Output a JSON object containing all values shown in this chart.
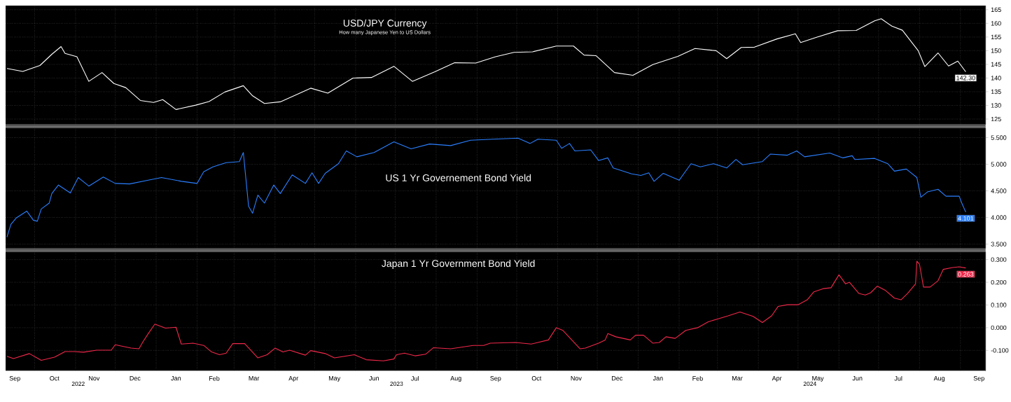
{
  "chart_data": [
    {
      "type": "line",
      "title": "USD/JPY Currency",
      "subtitle": "How many Japanese Yen to US Dollars",
      "color": "#ffffff",
      "x": [
        "2022-09-10",
        "2022-09-22",
        "2022-10-05",
        "2022-10-14",
        "2022-10-21",
        "2022-10-24",
        "2022-11-02",
        "2022-11-11",
        "2022-11-21",
        "2022-11-30",
        "2022-12-09",
        "2022-12-20",
        "2022-12-30",
        "2023-01-06",
        "2023-01-16",
        "2023-01-31",
        "2023-02-10",
        "2023-02-22",
        "2023-03-08",
        "2023-03-15",
        "2023-03-24",
        "2023-04-05",
        "2023-04-18",
        "2023-04-28",
        "2023-05-11",
        "2023-05-30",
        "2023-06-13",
        "2023-06-30",
        "2023-07-14",
        "2023-07-31",
        "2023-08-15",
        "2023-08-31",
        "2023-09-15",
        "2023-09-29",
        "2023-10-13",
        "2023-10-31",
        "2023-11-13",
        "2023-11-21",
        "2023-11-30",
        "2023-12-14",
        "2023-12-28",
        "2024-01-12",
        "2024-01-31",
        "2024-02-13",
        "2024-02-29",
        "2024-03-08",
        "2024-03-19",
        "2024-03-29",
        "2024-04-15",
        "2024-04-29",
        "2024-05-03",
        "2024-05-15",
        "2024-05-31",
        "2024-06-14",
        "2024-06-28",
        "2024-07-03",
        "2024-07-11",
        "2024-07-19",
        "2024-07-31",
        "2024-08-05",
        "2024-08-15",
        "2024-08-23",
        "2024-08-30",
        "2024-09-05"
      ],
      "values": [
        143.5,
        142.4,
        144.6,
        148.7,
        151.5,
        149.0,
        147.8,
        138.8,
        142.0,
        138.0,
        136.5,
        131.8,
        131.1,
        132.1,
        128.5,
        130.1,
        131.4,
        134.9,
        137.2,
        133.5,
        130.7,
        131.3,
        134.1,
        136.3,
        134.5,
        140.0,
        140.2,
        144.3,
        138.8,
        142.3,
        145.6,
        145.5,
        147.8,
        149.4,
        149.6,
        151.7,
        151.7,
        148.4,
        148.2,
        142.0,
        141.0,
        144.9,
        147.9,
        150.8,
        150.0,
        147.1,
        151.2,
        151.3,
        154.3,
        156.2,
        153.0,
        154.9,
        157.3,
        157.4,
        160.9,
        161.7,
        159.0,
        157.5,
        150.0,
        144.2,
        149.2,
        144.4,
        146.2,
        142.3
      ],
      "xlim": [
        "2022-09-09",
        "2024-09-20"
      ],
      "ylim": [
        123,
        166.5
      ],
      "xticks": [
        {
          "value": "2022-10-01",
          "label": null
        },
        {
          "value": "2022-11-01",
          "label": null
        },
        {
          "value": "2022-12-01",
          "label": null
        },
        {
          "value": "2023-01-01",
          "label": null
        },
        {
          "value": "2023-02-01",
          "label": null
        },
        {
          "value": "2023-03-01",
          "label": null
        },
        {
          "value": "2023-04-01",
          "label": null
        },
        {
          "value": "2023-05-01",
          "label": null
        },
        {
          "value": "2023-06-01",
          "label": null
        },
        {
          "value": "2023-07-01",
          "label": null
        },
        {
          "value": "2023-08-01",
          "label": null
        },
        {
          "value": "2023-09-01",
          "label": null
        },
        {
          "value": "2023-10-01",
          "label": null
        },
        {
          "value": "2023-11-01",
          "label": null
        },
        {
          "value": "2023-12-01",
          "label": null
        },
        {
          "value": "2024-01-01",
          "label": null
        },
        {
          "value": "2024-02-01",
          "label": null
        },
        {
          "value": "2024-03-01",
          "label": null
        },
        {
          "value": "2024-04-01",
          "label": null
        },
        {
          "value": "2024-05-01",
          "label": null
        },
        {
          "value": "2024-06-01",
          "label": null
        },
        {
          "value": "2024-07-01",
          "label": null
        },
        {
          "value": "2024-08-01",
          "label": null
        },
        {
          "value": "2024-09-01",
          "label": null
        }
      ],
      "yticks": [
        125,
        130,
        135,
        140,
        145,
        150,
        155,
        160,
        165
      ],
      "grid": true,
      "tick_labels": "y",
      "annotations": [
        {
          "text": "142.30",
          "x": "2024-09-05",
          "y": 142.3
        }
      ]
    },
    {
      "type": "line",
      "title": "US 1 Yr Governement Bond Yield",
      "color": "#2a7fff",
      "x": [
        "2022-09-10",
        "2022-09-13",
        "2022-09-17",
        "2022-09-25",
        "2022-09-30",
        "2022-10-03",
        "2022-10-06",
        "2022-10-12",
        "2022-10-14",
        "2022-10-19",
        "2022-10-28",
        "2022-11-03",
        "2022-11-11",
        "2022-11-22",
        "2022-12-01",
        "2022-12-12",
        "2022-12-26",
        "2023-01-05",
        "2023-01-20",
        "2023-02-01",
        "2023-02-06",
        "2023-02-13",
        "2023-02-23",
        "2023-03-05",
        "2023-03-08",
        "2023-03-12",
        "2023-03-15",
        "2023-03-19",
        "2023-03-24",
        "2023-03-31",
        "2023-04-05",
        "2023-04-14",
        "2023-04-24",
        "2023-04-29",
        "2023-05-04",
        "2023-05-09",
        "2023-05-19",
        "2023-05-25",
        "2023-06-02",
        "2023-06-15",
        "2023-06-30",
        "2023-07-13",
        "2023-07-27",
        "2023-08-12",
        "2023-08-27",
        "2023-09-13",
        "2023-10-02",
        "2023-10-11",
        "2023-10-17",
        "2023-10-31",
        "2023-11-04",
        "2023-11-10",
        "2023-11-14",
        "2023-11-26",
        "2023-12-02",
        "2023-12-09",
        "2023-12-13",
        "2023-12-27",
        "2024-01-03",
        "2024-01-09",
        "2024-01-13",
        "2024-01-20",
        "2024-02-01",
        "2024-02-10",
        "2024-02-17",
        "2024-02-27",
        "2024-03-08",
        "2024-03-15",
        "2024-03-20",
        "2024-04-04",
        "2024-04-10",
        "2024-04-23",
        "2024-04-30",
        "2024-05-06",
        "2024-05-25",
        "2024-06-04",
        "2024-06-11",
        "2024-06-13",
        "2024-06-28",
        "2024-07-08",
        "2024-07-13",
        "2024-07-22",
        "2024-07-30",
        "2024-08-02",
        "2024-08-07",
        "2024-08-15",
        "2024-08-21",
        "2024-08-31",
        "2024-09-02",
        "2024-09-05"
      ],
      "values": [
        3.63,
        3.87,
        3.99,
        4.12,
        3.95,
        3.93,
        4.16,
        4.27,
        4.45,
        4.61,
        4.46,
        4.75,
        4.59,
        4.76,
        4.64,
        4.63,
        4.7,
        4.75,
        4.68,
        4.64,
        4.86,
        4.95,
        5.03,
        5.05,
        5.22,
        4.21,
        4.08,
        4.42,
        4.27,
        4.61,
        4.45,
        4.8,
        4.64,
        4.84,
        4.64,
        4.83,
        5.01,
        5.25,
        5.14,
        5.22,
        5.42,
        5.29,
        5.38,
        5.35,
        5.45,
        5.47,
        5.49,
        5.39,
        5.47,
        5.45,
        5.3,
        5.39,
        5.25,
        5.27,
        5.07,
        5.12,
        4.93,
        4.82,
        4.79,
        4.84,
        4.68,
        4.83,
        4.7,
        5.01,
        4.95,
        5.01,
        4.93,
        5.09,
        4.99,
        5.05,
        5.19,
        5.17,
        5.25,
        5.14,
        5.21,
        5.12,
        5.16,
        5.09,
        5.11,
        5.01,
        4.87,
        4.91,
        4.75,
        4.38,
        4.48,
        4.53,
        4.4,
        4.4,
        4.27,
        4.101
      ],
      "xlim": [
        "2022-09-09",
        "2024-09-20"
      ],
      "ylim": [
        3.42,
        5.68
      ],
      "xticks": [
        {
          "value": "2022-10-01",
          "label": null
        },
        {
          "value": "2022-11-01",
          "label": null
        },
        {
          "value": "2022-12-01",
          "label": null
        },
        {
          "value": "2023-01-01",
          "label": null
        },
        {
          "value": "2023-02-01",
          "label": null
        },
        {
          "value": "2023-03-01",
          "label": null
        },
        {
          "value": "2023-04-01",
          "label": null
        },
        {
          "value": "2023-05-01",
          "label": null
        },
        {
          "value": "2023-06-01",
          "label": null
        },
        {
          "value": "2023-07-01",
          "label": null
        },
        {
          "value": "2023-08-01",
          "label": null
        },
        {
          "value": "2023-09-01",
          "label": null
        },
        {
          "value": "2023-10-01",
          "label": null
        },
        {
          "value": "2023-11-01",
          "label": null
        },
        {
          "value": "2023-12-01",
          "label": null
        },
        {
          "value": "2024-01-01",
          "label": null
        },
        {
          "value": "2024-02-01",
          "label": null
        },
        {
          "value": "2024-03-01",
          "label": null
        },
        {
          "value": "2024-04-01",
          "label": null
        },
        {
          "value": "2024-05-01",
          "label": null
        },
        {
          "value": "2024-06-01",
          "label": null
        },
        {
          "value": "2024-07-01",
          "label": null
        },
        {
          "value": "2024-08-01",
          "label": null
        },
        {
          "value": "2024-09-01",
          "label": null
        }
      ],
      "yticks": [
        {
          "value": 3.5,
          "label": "3.500"
        },
        {
          "value": 4.0,
          "label": "4.000"
        },
        {
          "value": 4.5,
          "label": "4.500"
        },
        {
          "value": 5.0,
          "label": "5.000"
        },
        {
          "value": 5.5,
          "label": "5.500"
        }
      ],
      "grid": true,
      "tick_labels": "y",
      "annotations": [
        {
          "text": "4.101",
          "x": "2024-09-05",
          "y": 4.101
        }
      ]
    },
    {
      "type": "line",
      "title": "Japan 1 Yr Government Bond Yield",
      "color": "#f0284a",
      "x": [
        "2022-09-10",
        "2022-09-15",
        "2022-09-27",
        "2022-10-06",
        "2022-10-16",
        "2022-10-24",
        "2022-10-31",
        "2022-11-07",
        "2022-11-17",
        "2022-11-28",
        "2022-12-01",
        "2022-12-13",
        "2022-12-19",
        "2022-12-22",
        "2022-12-26",
        "2022-12-31",
        "2023-01-08",
        "2023-01-16",
        "2023-01-20",
        "2023-01-29",
        "2023-02-06",
        "2023-02-12",
        "2023-02-18",
        "2023-02-23",
        "2023-02-28",
        "2023-03-09",
        "2023-03-19",
        "2023-03-26",
        "2023-04-01",
        "2023-04-07",
        "2023-04-12",
        "2023-04-24",
        "2023-04-28",
        "2023-05-09",
        "2023-05-16",
        "2023-05-31",
        "2023-06-09",
        "2023-06-22",
        "2023-06-30",
        "2023-07-02",
        "2023-07-08",
        "2023-07-16",
        "2023-07-24",
        "2023-07-30",
        "2023-08-12",
        "2023-08-29",
        "2023-09-06",
        "2023-09-11",
        "2023-09-30",
        "2023-10-12",
        "2023-10-25",
        "2023-10-31",
        "2023-11-05",
        "2023-11-18",
        "2023-11-22",
        "2023-12-02",
        "2023-12-07",
        "2023-12-09",
        "2023-12-15",
        "2023-12-26",
        "2023-12-30",
        "2024-01-05",
        "2024-01-12",
        "2024-01-17",
        "2024-01-22",
        "2024-01-29",
        "2024-02-06",
        "2024-02-15",
        "2024-02-23",
        "2024-03-02",
        "2024-03-09",
        "2024-03-18",
        "2024-03-28",
        "2024-04-04",
        "2024-04-11",
        "2024-04-16",
        "2024-04-23",
        "2024-05-01",
        "2024-05-08",
        "2024-05-13",
        "2024-05-20",
        "2024-05-26",
        "2024-06-01",
        "2024-06-06",
        "2024-06-09",
        "2024-06-16",
        "2024-06-21",
        "2024-06-25",
        "2024-06-30",
        "2024-07-06",
        "2024-07-13",
        "2024-07-18",
        "2024-07-23",
        "2024-07-29",
        "2024-07-30",
        "2024-08-01",
        "2024-08-04",
        "2024-08-09",
        "2024-08-15",
        "2024-08-19",
        "2024-08-26",
        "2024-08-31",
        "2024-09-05"
      ],
      "values": [
        -0.126,
        -0.136,
        -0.114,
        -0.144,
        -0.13,
        -0.105,
        -0.105,
        -0.108,
        -0.099,
        -0.099,
        -0.075,
        -0.09,
        -0.093,
        -0.062,
        -0.026,
        0.016,
        -0.002,
        0.002,
        -0.072,
        -0.068,
        -0.078,
        -0.107,
        -0.119,
        -0.112,
        -0.07,
        -0.07,
        -0.133,
        -0.119,
        -0.09,
        -0.107,
        -0.099,
        -0.121,
        -0.101,
        -0.114,
        -0.133,
        -0.119,
        -0.141,
        -0.146,
        -0.138,
        -0.119,
        -0.112,
        -0.124,
        -0.117,
        -0.088,
        -0.093,
        -0.078,
        -0.078,
        -0.068,
        -0.065,
        -0.072,
        -0.054,
        0.0,
        -0.012,
        -0.093,
        -0.09,
        -0.068,
        -0.054,
        -0.026,
        -0.04,
        -0.054,
        -0.033,
        -0.033,
        -0.068,
        -0.065,
        -0.04,
        -0.047,
        -0.012,
        0.0,
        0.026,
        0.04,
        0.052,
        0.069,
        0.05,
        0.023,
        0.052,
        0.094,
        0.101,
        0.101,
        0.123,
        0.158,
        0.172,
        0.176,
        0.233,
        0.193,
        0.2,
        0.151,
        0.144,
        0.154,
        0.183,
        0.165,
        0.13,
        0.123,
        0.151,
        0.193,
        0.293,
        0.279,
        0.179,
        0.179,
        0.207,
        0.257,
        0.265,
        0.268,
        0.263
      ],
      "xlim": [
        "2022-09-09",
        "2024-09-20"
      ],
      "ylim": [
        -0.19,
        0.334
      ],
      "xticks": [
        {
          "value": "2022-10-01",
          "label": null
        },
        {
          "value": "2022-11-01",
          "label": null
        },
        {
          "value": "2022-12-01",
          "label": null
        },
        {
          "value": "2023-01-01",
          "label": null
        },
        {
          "value": "2023-02-01",
          "label": null
        },
        {
          "value": "2023-03-01",
          "label": null
        },
        {
          "value": "2023-04-01",
          "label": null
        },
        {
          "value": "2023-05-01",
          "label": null
        },
        {
          "value": "2023-06-01",
          "label": null
        },
        {
          "value": "2023-07-01",
          "label": null
        },
        {
          "value": "2023-08-01",
          "label": null
        },
        {
          "value": "2023-09-01",
          "label": null
        },
        {
          "value": "2023-10-01",
          "label": null
        },
        {
          "value": "2023-11-01",
          "label": null
        },
        {
          "value": "2023-12-01",
          "label": null
        },
        {
          "value": "2024-01-01",
          "label": null
        },
        {
          "value": "2024-02-01",
          "label": null
        },
        {
          "value": "2024-03-01",
          "label": null
        },
        {
          "value": "2024-04-01",
          "label": null
        },
        {
          "value": "2024-05-01",
          "label": null
        },
        {
          "value": "2024-06-01",
          "label": null
        },
        {
          "value": "2024-07-01",
          "label": null
        },
        {
          "value": "2024-08-01",
          "label": null
        },
        {
          "value": "2024-09-01",
          "label": null
        },
        {
          "value": "2022-09-16",
          "label": "Sep"
        },
        {
          "value": "2022-10-16",
          "label": "Oct"
        },
        {
          "value": "2022-11-15",
          "label": "Nov"
        },
        {
          "value": "2022-12-16",
          "label": "Dec"
        },
        {
          "value": "2023-01-16",
          "label": "Jan"
        },
        {
          "value": "2023-02-14",
          "label": "Feb"
        },
        {
          "value": "2023-03-16",
          "label": "Mar"
        },
        {
          "value": "2023-04-15",
          "label": "Apr"
        },
        {
          "value": "2023-05-16",
          "label": "May"
        },
        {
          "value": "2023-06-15",
          "label": "Jun"
        },
        {
          "value": "2023-07-16",
          "label": "Jul"
        },
        {
          "value": "2023-08-16",
          "label": "Aug"
        },
        {
          "value": "2023-09-15",
          "label": "Sep"
        },
        {
          "value": "2023-10-16",
          "label": "Oct"
        },
        {
          "value": "2023-11-15",
          "label": "Nov"
        },
        {
          "value": "2023-12-16",
          "label": "Dec"
        },
        {
          "value": "2024-01-16",
          "label": "Jan"
        },
        {
          "value": "2024-02-15",
          "label": "Feb"
        },
        {
          "value": "2024-03-16",
          "label": "Mar"
        },
        {
          "value": "2024-04-15",
          "label": "Apr"
        },
        {
          "value": "2024-05-16",
          "label": "May"
        },
        {
          "value": "2024-06-15",
          "label": "Jun"
        },
        {
          "value": "2024-07-16",
          "label": "Jul"
        },
        {
          "value": "2024-08-16",
          "label": "Aug"
        },
        {
          "value": "2024-09-15",
          "label": "Sep"
        }
      ],
      "x2lim": [
        "2022-09-09",
        "2024-09-20"
      ],
      "x2ticks": [
        {
          "value": "2022-11-03",
          "label": "2022"
        },
        {
          "value": "2023-01-01",
          "label": null
        },
        {
          "value": "2023-07-02",
          "label": "2023"
        },
        {
          "value": "2024-01-01",
          "label": null
        },
        {
          "value": "2024-05-10",
          "label": "2024"
        }
      ],
      "yticks": [
        {
          "value": -0.1,
          "label": "-0.100"
        },
        {
          "value": 0.0,
          "label": "0.000"
        },
        {
          "value": 0.1,
          "label": "0.100"
        },
        {
          "value": 0.2,
          "label": "0.200"
        },
        {
          "value": 0.3,
          "label": "0.300"
        }
      ],
      "grid": true,
      "annotations": [
        {
          "text": "0.263",
          "x": "2024-09-05",
          "y": 0.263
        }
      ]
    }
  ]
}
